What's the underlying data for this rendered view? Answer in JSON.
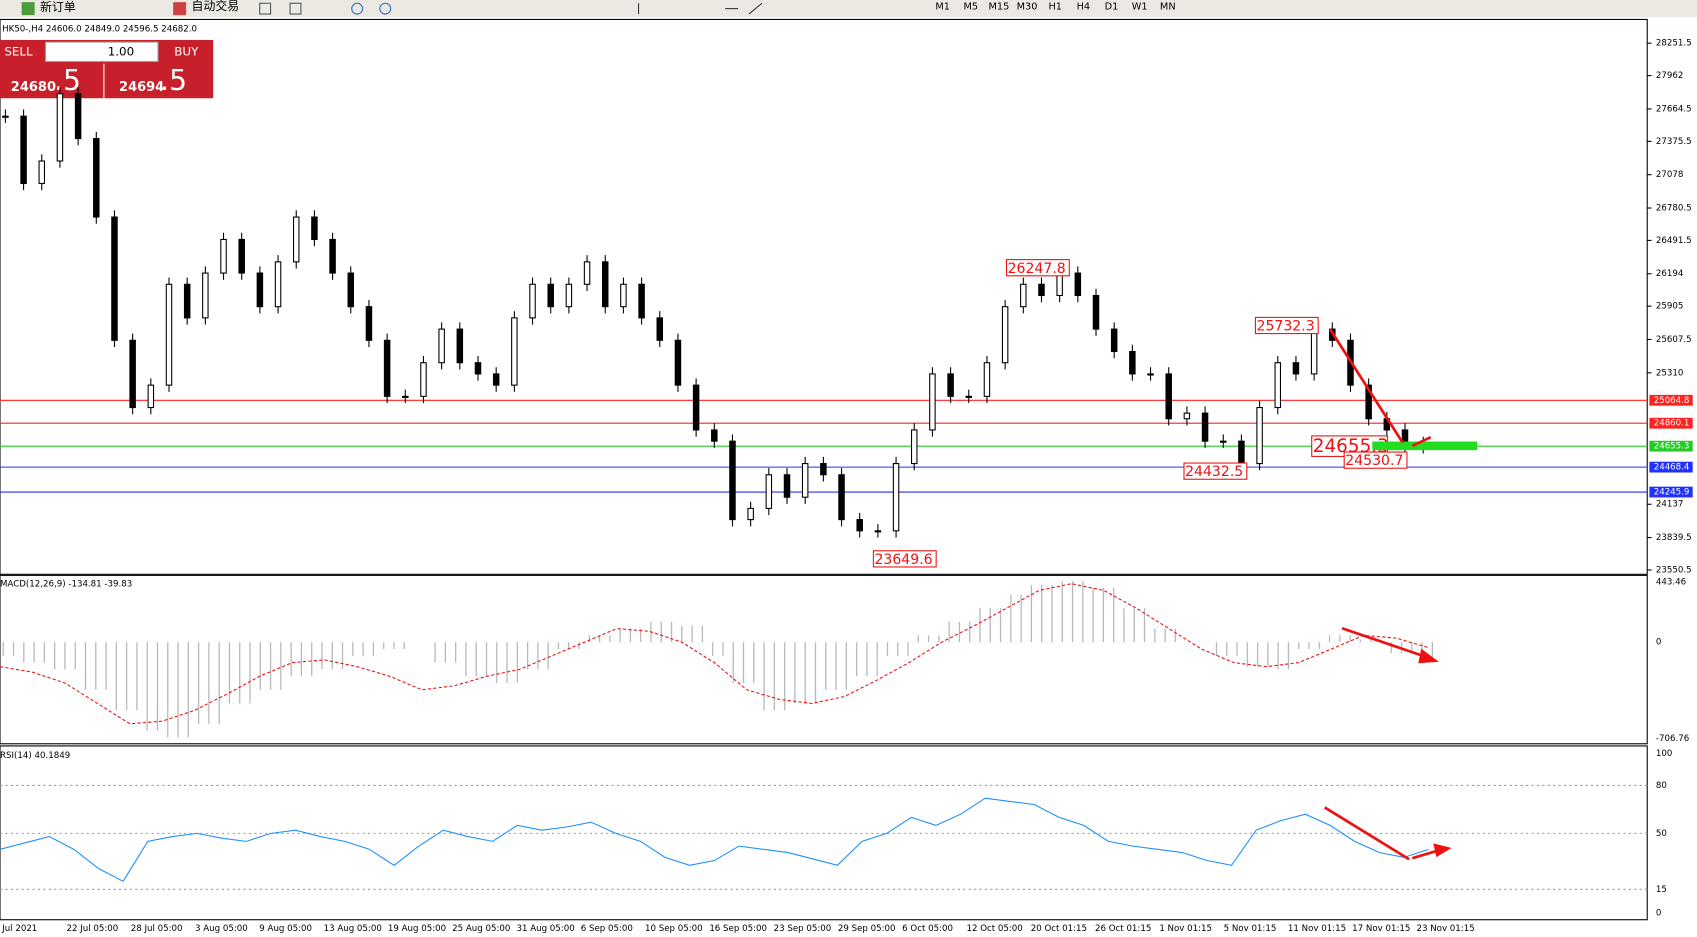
{
  "toolbar": {
    "new_order": "新订单",
    "auto_trading": "自动交易",
    "timeframes": [
      "M1",
      "M5",
      "M15",
      "M30",
      "H1",
      "H4",
      "D1",
      "W1",
      "MN"
    ]
  },
  "chart_header": "HK50-,H4  24606.0 24849.0 24596.5 24682.0",
  "trade_panel": {
    "sell": "SELL",
    "buy": "BUY",
    "volume": "1.00",
    "sell_big": "24680",
    "sell_pips": ".5",
    "buy_big": "24694",
    "buy_pips": ".5"
  },
  "price_axis": {
    "ticks": [
      28251.5,
      27962.0,
      27664.5,
      27375.5,
      27078.0,
      26780.5,
      26491.5,
      26194.0,
      25905.0,
      25607.5,
      25310.0,
      24137.0,
      23839.5,
      23550.5
    ],
    "levels": [
      {
        "value": 25064.8,
        "color": "#ff2020"
      },
      {
        "value": 24860.1,
        "color": "#ff2020"
      },
      {
        "value": 24655.3,
        "color": "#22cc22"
      },
      {
        "value": 24468.4,
        "color": "#2030ff"
      },
      {
        "value": 24245.9,
        "color": "#2030ff"
      }
    ]
  },
  "annotations": [
    26247.8,
    25732.3,
    24655.3,
    24530.7,
    24432.5,
    23649.6
  ],
  "closes": [
    27600,
    27000,
    27200,
    27800,
    27400,
    26700,
    25600,
    25000,
    25200,
    26100,
    25800,
    26200,
    26500,
    26200,
    25900,
    26300,
    26700,
    26500,
    26200,
    25900,
    25600,
    25100,
    25100,
    25400,
    25700,
    25400,
    25300,
    25200,
    25800,
    26100,
    25900,
    26100,
    26300,
    25900,
    26100,
    25800,
    25600,
    25200,
    24800,
    24700,
    24000,
    24100,
    24400,
    24200,
    24500,
    24400,
    24000,
    23900,
    23900,
    24500,
    24800,
    25300,
    25100,
    25100,
    25400,
    25900,
    26100,
    26000,
    26200,
    26000,
    25700,
    25500,
    25300,
    25300,
    24900,
    24950,
    24700,
    24700,
    24500,
    25000,
    25400,
    25300,
    25700,
    25600,
    25200,
    24900,
    24800,
    24650,
    24680
  ],
  "macd": {
    "label": "MACD(12,26,9) -134.81 -39.83",
    "ticks": [
      443.46,
      0.0,
      -706.76
    ],
    "histogram": [
      -100,
      -150,
      -200,
      -350,
      -500,
      -650,
      -700,
      -600,
      -450,
      -350,
      -250,
      -200,
      -100,
      -50,
      0,
      -150,
      -250,
      -300,
      -200,
      -50,
      50,
      100,
      150,
      120,
      -100,
      -300,
      -500,
      -450,
      -350,
      -250,
      -100,
      50,
      150,
      250,
      350,
      420,
      450,
      400,
      250,
      100,
      0,
      -100,
      -180,
      -200,
      -50,
      50,
      20,
      -80,
      -150
    ],
    "signal": [
      -180,
      -220,
      -300,
      -450,
      -600,
      -580,
      -500,
      -380,
      -250,
      -150,
      -130,
      -180,
      -250,
      -350,
      -320,
      -250,
      -200,
      -100,
      0,
      100,
      80,
      0,
      -150,
      -350,
      -420,
      -450,
      -400,
      -280,
      -150,
      0,
      120,
      250,
      380,
      430,
      380,
      250,
      100,
      -50,
      -150,
      -180,
      -150,
      -50,
      50,
      30,
      -40
    ],
    "signal_tick_labels": null
  },
  "rsi": {
    "label": "RSI(14) 40.1849",
    "ticks": [
      100,
      80,
      50,
      15,
      0
    ],
    "values": [
      40,
      44,
      48,
      40,
      28,
      20,
      45,
      48,
      50,
      47,
      45,
      50,
      52,
      48,
      45,
      40,
      30,
      42,
      52,
      48,
      45,
      55,
      52,
      54,
      57,
      50,
      45,
      35,
      30,
      33,
      42,
      40,
      38,
      34,
      30,
      45,
      50,
      60,
      55,
      62,
      72,
      70,
      68,
      60,
      55,
      45,
      42,
      40,
      38,
      33,
      30,
      52,
      58,
      62,
      55,
      45,
      38,
      35,
      40
    ]
  },
  "date_axis": [
    "Jul 2021",
    "22 Jul 05:00",
    "28 Jul 05:00",
    "3 Aug 05:00",
    "9 Aug 05:00",
    "13 Aug 05:00",
    "19 Aug 05:00",
    "25 Aug 05:00",
    "31 Aug 05:00",
    "6 Sep 05:00",
    "10 Sep 05:00",
    "16 Sep 05:00",
    "23 Sep 05:00",
    "29 Sep 05:00",
    "6 Oct 05:00",
    "12 Oct 05:00",
    "20 Oct 01:15",
    "26 Oct 01:15",
    "1 Nov 01:15",
    "5 Nov 01:15",
    "11 Nov 01:15",
    "17 Nov 01:15",
    "23 Nov 01:15"
  ]
}
